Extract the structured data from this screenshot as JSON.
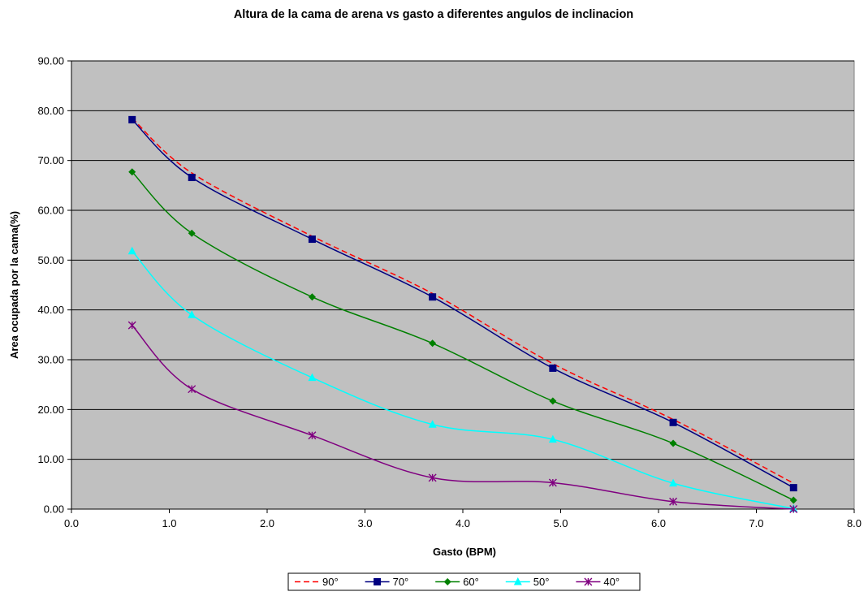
{
  "chart_data": {
    "type": "line",
    "title": "Altura de la cama de arena vs gasto a diferentes angulos de inclinacion",
    "xlabel": "Gasto (BPM)",
    "ylabel": "Area ocupada por la cama(%)",
    "xlim": [
      0,
      8
    ],
    "ylim": [
      0,
      90
    ],
    "x_ticks": [
      "0.0",
      "1.0",
      "2.0",
      "3.0",
      "4.0",
      "5.0",
      "6.0",
      "7.0",
      "8.0"
    ],
    "y_ticks": [
      "0.00",
      "10.00",
      "20.00",
      "30.00",
      "40.00",
      "50.00",
      "60.00",
      "70.00",
      "80.00",
      "90.00"
    ],
    "grid": "horizontal",
    "plot_background": "#c0c0c0",
    "legend_position": "bottom",
    "x": [
      0.62,
      1.23,
      2.46,
      3.69,
      4.92,
      6.15,
      7.38
    ],
    "series": [
      {
        "name": "90°",
        "color": "#ff0000",
        "dash": "dashed",
        "marker": "none",
        "values": [
          78.5,
          67.5,
          54.8,
          43.3,
          29.2,
          18.0,
          5.2
        ]
      },
      {
        "name": "70°",
        "color": "#000080",
        "dash": "solid",
        "marker": "square",
        "values": [
          78.2,
          66.6,
          54.2,
          42.6,
          28.3,
          17.4,
          4.3
        ]
      },
      {
        "name": "60°",
        "color": "#008000",
        "dash": "solid",
        "marker": "diamond",
        "values": [
          67.7,
          55.4,
          42.6,
          33.3,
          21.7,
          13.2,
          1.8
        ]
      },
      {
        "name": "50°",
        "color": "#00ffff",
        "dash": "solid",
        "marker": "triangle",
        "values": [
          51.8,
          39.0,
          26.4,
          17.0,
          14.0,
          5.2,
          0.1
        ]
      },
      {
        "name": "40°",
        "color": "#800080",
        "dash": "solid",
        "marker": "asterisk",
        "values": [
          36.9,
          24.1,
          14.8,
          6.3,
          5.3,
          1.5,
          0.0
        ]
      }
    ]
  }
}
